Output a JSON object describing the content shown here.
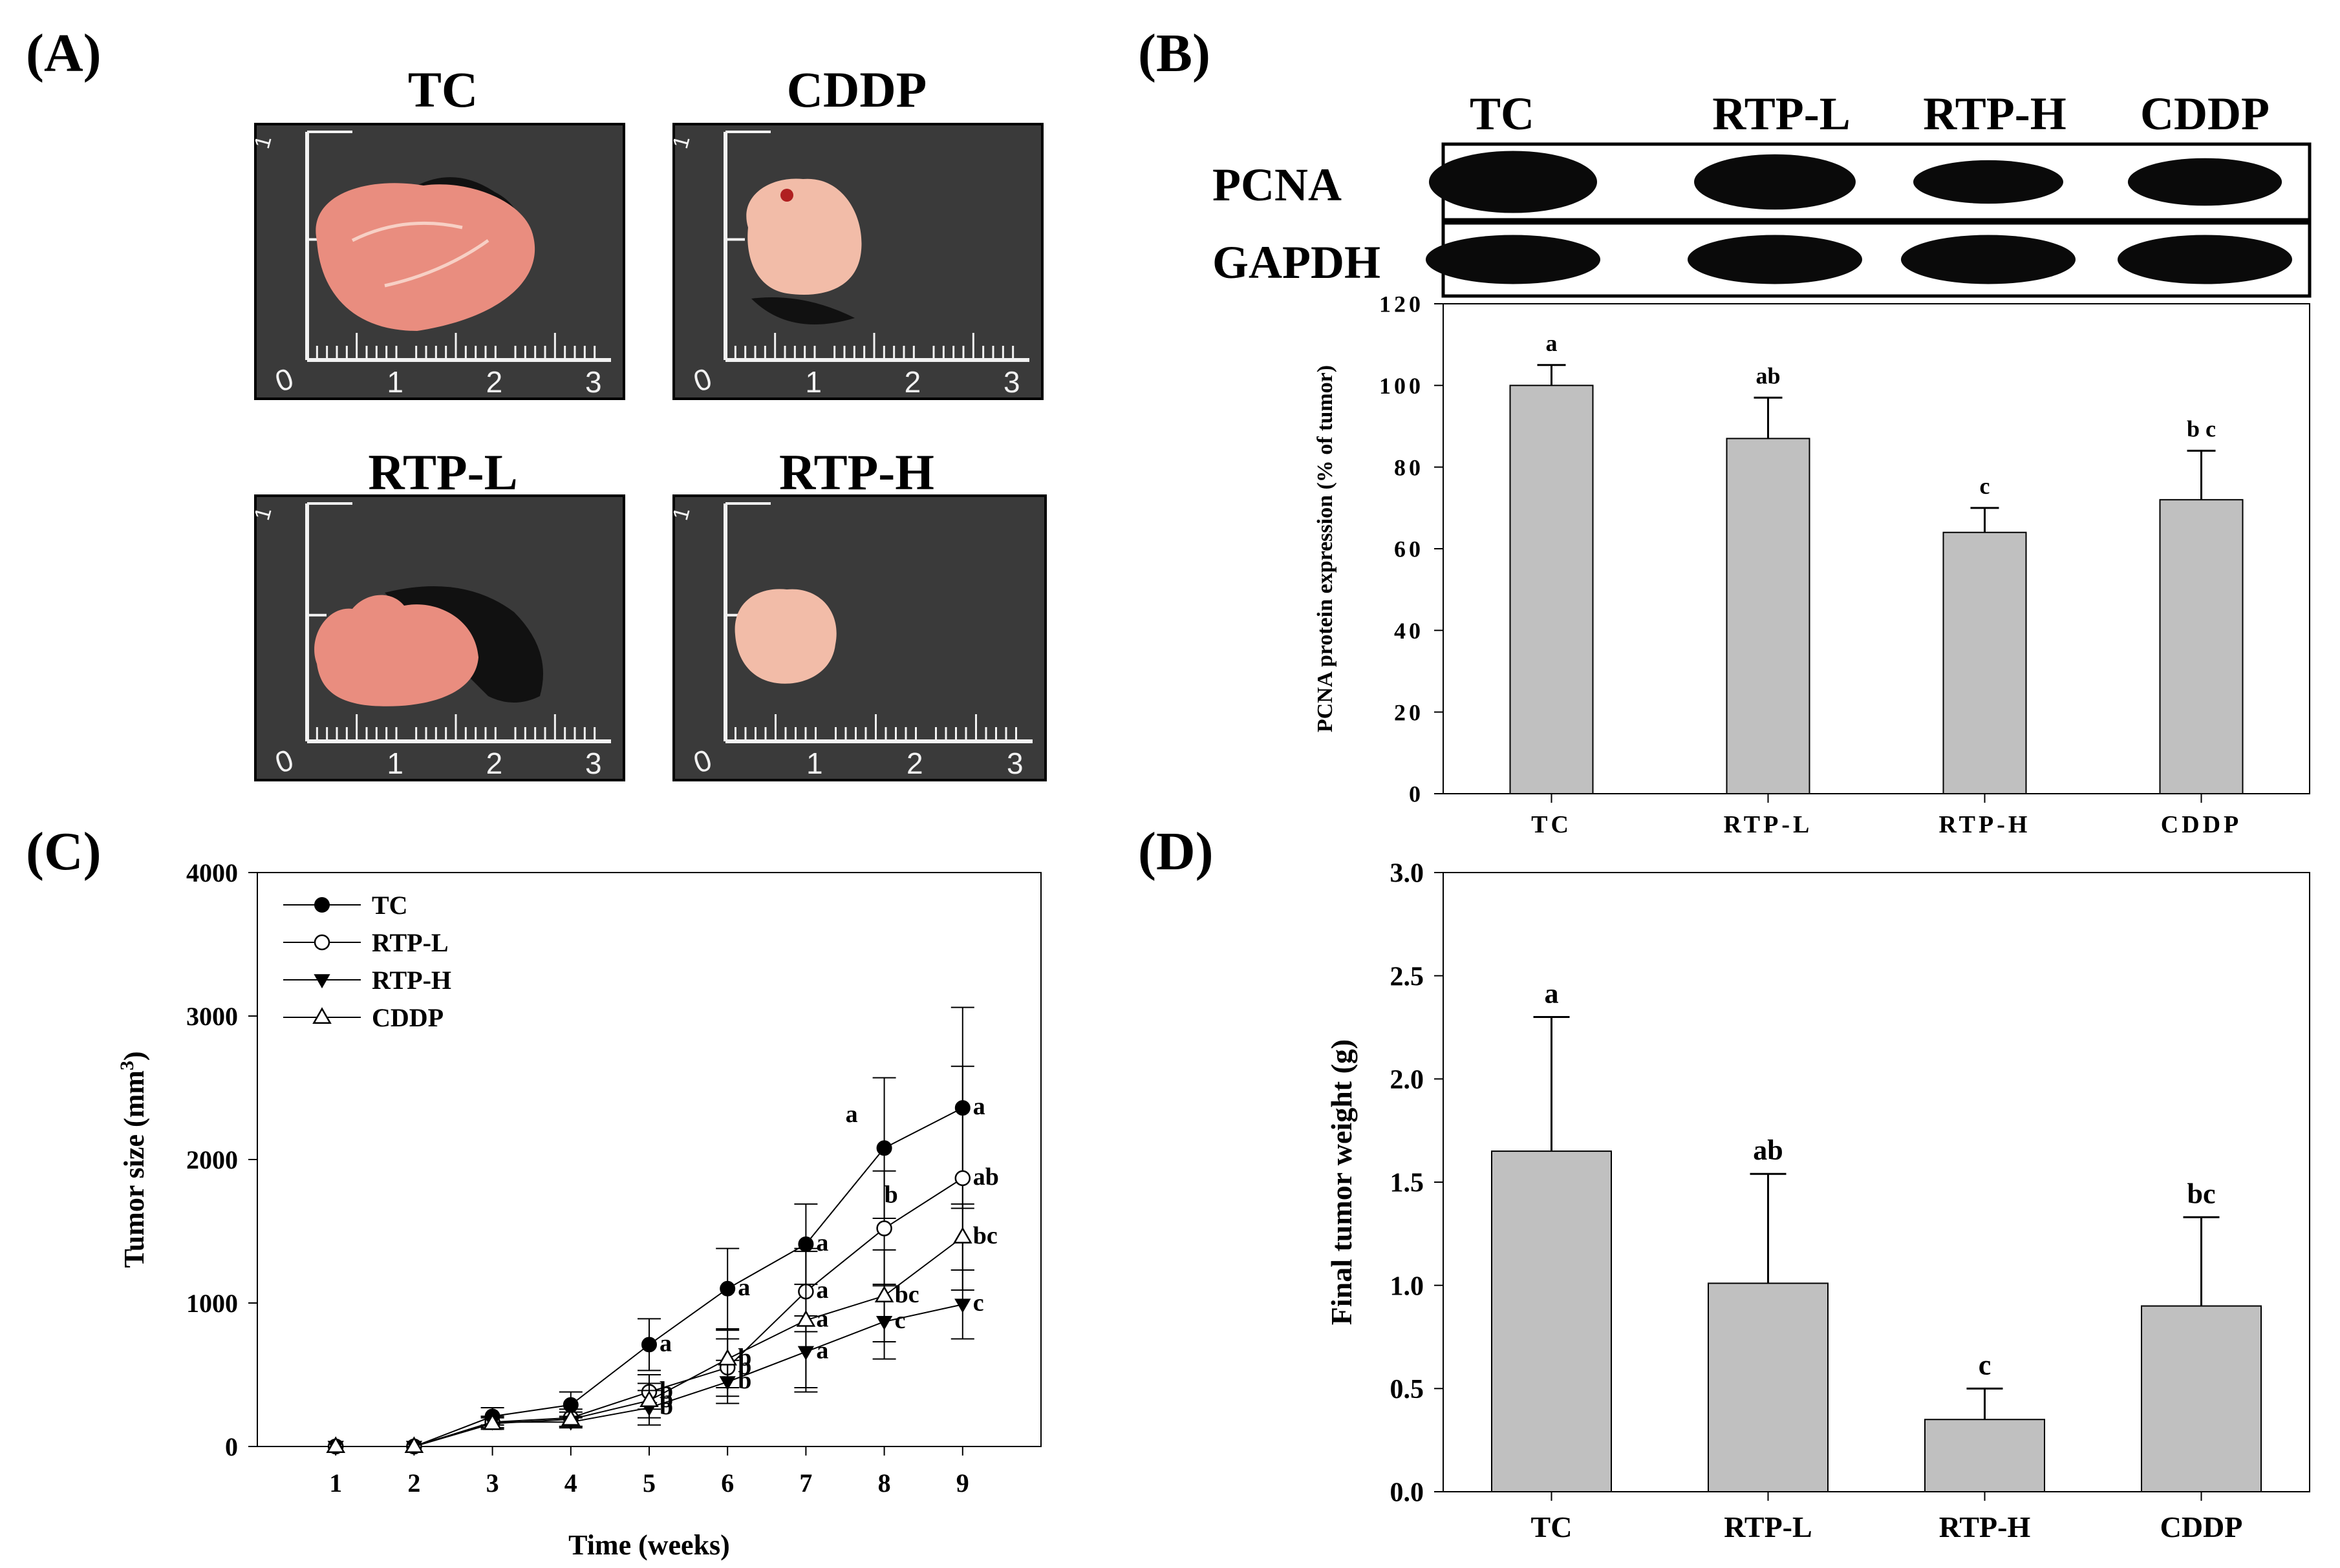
{
  "figure": {
    "panels": [
      {
        "label": "(A)"
      },
      {
        "label": "(B)"
      },
      {
        "label": "(C)"
      },
      {
        "label": "(D)"
      }
    ]
  },
  "panel_a": {
    "photos": [
      {
        "title": "TC",
        "ruler_numbers": [
          "0",
          "1",
          "2",
          "3"
        ],
        "side_mark": "1"
      },
      {
        "title": "CDDP",
        "ruler_numbers": [
          "0",
          "1",
          "2",
          "3"
        ],
        "side_mark": "1"
      },
      {
        "title": "RTP-L",
        "ruler_numbers": [
          "0",
          "1",
          "2",
          "3"
        ],
        "side_mark": "1"
      },
      {
        "title": "RTP-H",
        "ruler_numbers": [
          "0",
          "1",
          "2",
          "3"
        ],
        "side_mark": "1"
      }
    ],
    "colors": {
      "background": "#3a3a3a",
      "tumor": "#e98d7f",
      "tumor_pale": "#f2bca8",
      "ruler": "#f2f2f2"
    }
  },
  "panel_b_blot": {
    "lanes": [
      "TC",
      "RTP-L",
      "RTP-H",
      "CDDP"
    ],
    "rows": [
      {
        "name": "PCNA",
        "intensity": [
          1.0,
          0.87,
          0.64,
          0.72
        ]
      },
      {
        "name": "GAPDH",
        "intensity": [
          1.0,
          1.0,
          1.0,
          1.0
        ]
      }
    ]
  },
  "chart_data": [
    {
      "id": "B",
      "type": "bar",
      "categories": [
        "TC",
        "RTP-L",
        "RTP-H",
        "CDDP"
      ],
      "values": [
        100,
        87,
        64,
        72
      ],
      "errors": [
        5,
        10,
        6,
        12
      ],
      "letters": [
        "a",
        "ab",
        "c",
        "b c"
      ],
      "title": "",
      "xlabel": "",
      "ylabel": "PCNA protein expression (% of tumor)",
      "ylim": [
        0,
        120
      ],
      "yticks": [
        0,
        20,
        40,
        60,
        80,
        100,
        120
      ],
      "bar_color": "#c0c0c0"
    },
    {
      "id": "C",
      "type": "line",
      "x": [
        1,
        2,
        3,
        4,
        5,
        6,
        7,
        8,
        9
      ],
      "xlabel": "Time (weeks)",
      "ylabel": "Tumor size (mm",
      "ylabel_sup": "3",
      "ylabel_end": ")",
      "ylim": [
        0,
        4000
      ],
      "xlim": [
        0,
        10
      ],
      "yticks": [
        0,
        1000,
        2000,
        3000,
        4000
      ],
      "legend_position": "top-left",
      "series": [
        {
          "name": "TC",
          "marker": "filled-circle",
          "values": [
            0,
            0,
            210,
            290,
            710,
            1100,
            1410,
            2080,
            2360
          ],
          "errors": [
            0,
            0,
            60,
            90,
            180,
            280,
            280,
            490,
            700
          ],
          "letters": [
            "",
            "",
            "",
            "",
            "a",
            "a",
            "a",
            "a",
            "a"
          ]
        },
        {
          "name": "RTP-L",
          "marker": "open-circle",
          "values": [
            0,
            0,
            170,
            200,
            380,
            550,
            1080,
            1520,
            1870
          ],
          "errors": [
            0,
            0,
            40,
            60,
            120,
            200,
            280,
            400,
            780
          ],
          "letters": [
            "",
            "",
            "",
            "",
            "b",
            "b",
            "a",
            "b",
            "ab"
          ]
        },
        {
          "name": "RTP-H",
          "marker": "filled-triangle-down",
          "values": [
            0,
            0,
            170,
            170,
            270,
            450,
            660,
            870,
            990
          ],
          "errors": [
            0,
            0,
            40,
            40,
            120,
            150,
            250,
            260,
            240
          ],
          "letters": [
            "",
            "",
            "",
            "",
            "b",
            "b",
            "a",
            "c",
            "c"
          ]
        },
        {
          "name": "CDDP",
          "marker": "open-triangle-up",
          "values": [
            0,
            0,
            160,
            190,
            320,
            610,
            880,
            1050,
            1460
          ],
          "errors": [
            0,
            0,
            40,
            50,
            120,
            200,
            500,
            320,
            230
          ],
          "letters": [
            "",
            "",
            "",
            "",
            "b",
            "b",
            "a",
            "bc",
            "bc"
          ]
        }
      ]
    },
    {
      "id": "D",
      "type": "bar",
      "categories": [
        "TC",
        "RTP-L",
        "RTP-H",
        "CDDP"
      ],
      "values": [
        1.65,
        1.01,
        0.35,
        0.9
      ],
      "errors": [
        0.65,
        0.53,
        0.15,
        0.43
      ],
      "letters": [
        "a",
        "ab",
        "c",
        "bc"
      ],
      "title": "",
      "xlabel": "",
      "ylabel": "Final tumor weight (g)",
      "ylim": [
        0,
        3.0
      ],
      "yticks": [
        "0.0",
        "0.5",
        "1.0",
        "1.5",
        "2.0",
        "2.5",
        "3.0"
      ],
      "bar_color": "#c0c0c0"
    }
  ]
}
